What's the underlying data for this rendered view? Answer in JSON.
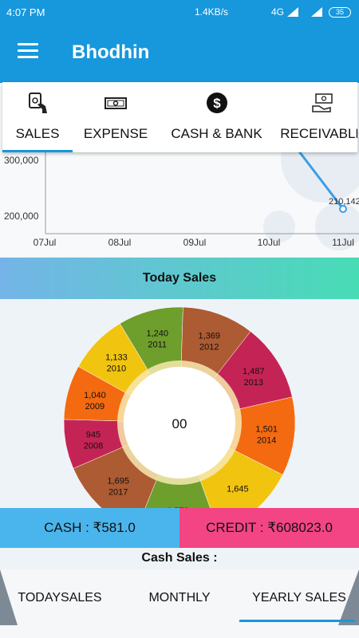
{
  "status_bar": {
    "time": "4:07 PM",
    "network_speed": "1.4KB/s",
    "network_type": "4G",
    "battery": "35"
  },
  "app_bar": {
    "title": "Bhodhin",
    "menu_icon": "hamburger-menu-icon"
  },
  "tabs": [
    {
      "label": "SALES",
      "icon": "cash-hand-icon",
      "selected": true
    },
    {
      "label": "EXPENSE",
      "icon": "banknote-icon",
      "selected": false
    },
    {
      "label": "CASH & BANK",
      "icon": "dollar-circle-icon",
      "selected": false
    },
    {
      "label": "RECEIVABLE",
      "icon": "money-transfer-icon",
      "selected": false
    }
  ],
  "line_chart": {
    "y_ticks": [
      "300,000",
      "200,000"
    ],
    "x_ticks": [
      "07Jul",
      "08Jul",
      "09Jul",
      "10Jul",
      "11Jul"
    ],
    "point_label": "210,142"
  },
  "today_sales": {
    "title": "Today Sales",
    "center_text": "00"
  },
  "chart_data": {
    "type": "pie",
    "title": "Today Sales",
    "slices": [
      {
        "value": "1,240",
        "year": "2011",
        "color": "#6e9e2c"
      },
      {
        "value": "1,369",
        "year": "2012",
        "color": "#ad5b33"
      },
      {
        "value": "1,487",
        "year": "2013",
        "color": "#c42455"
      },
      {
        "value": "1,501",
        "year": "2014",
        "color": "#f46a10"
      },
      {
        "value": "1,645",
        "year": "",
        "color": "#f1c40f"
      },
      {
        "value": "1,578",
        "year": "",
        "color": "#6e9e2c"
      },
      {
        "value": "1,695",
        "year": "2017",
        "color": "#ad5b33"
      },
      {
        "value": "945",
        "year": "2008",
        "color": "#c42455"
      },
      {
        "value": "1,040",
        "year": "2009",
        "color": "#f46a10"
      },
      {
        "value": "1,133",
        "year": "2010",
        "color": "#f1c40f"
      }
    ]
  },
  "summary": {
    "cash": "CASH : ₹581.0",
    "credit": "CREDIT : ₹608023.0"
  },
  "cash_sales_label": "Cash Sales :",
  "bottom_tabs": [
    {
      "label": "TODAYSALES",
      "selected": false
    },
    {
      "label": "MONTHLY",
      "selected": false
    },
    {
      "label": "YEARLY SALES",
      "selected": true
    }
  ],
  "colors": {
    "primary": "#1797dc",
    "cash": "#4ab5ec",
    "credit": "#f34483"
  }
}
